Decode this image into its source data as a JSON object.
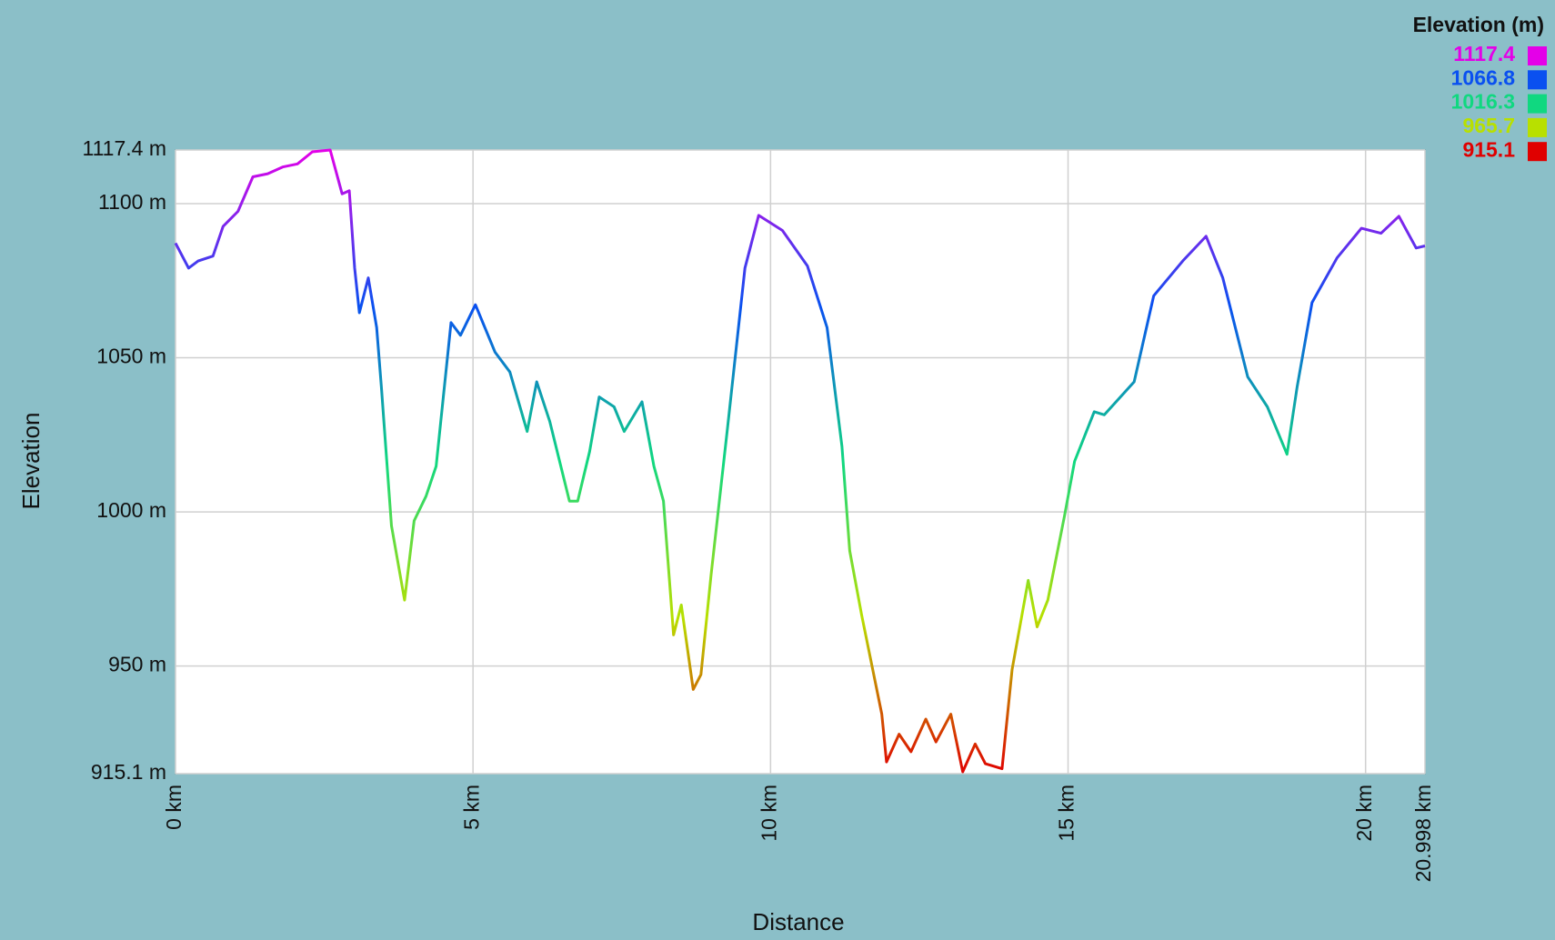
{
  "chart_data": {
    "type": "line",
    "xlabel": "Distance",
    "ylabel": "Elevation",
    "legend_title": "Elevation (m)",
    "colorscale": [
      {
        "value": 1117.4,
        "color": "#e400e8"
      },
      {
        "value": 1066.8,
        "color": "#0a50f0"
      },
      {
        "value": 1016.3,
        "color": "#10d880"
      },
      {
        "value": 965.7,
        "color": "#b8e000"
      },
      {
        "value": 915.1,
        "color": "#e00000"
      }
    ],
    "x": [
      0,
      0.22,
      0.38,
      0.63,
      0.8,
      1.05,
      1.3,
      1.55,
      1.8,
      2.05,
      2.3,
      2.6,
      2.8,
      2.92,
      3.01,
      3.09,
      3.24,
      3.38,
      3.46,
      3.63,
      3.85,
      4.01,
      4.21,
      4.38,
      4.63,
      4.79,
      5.04,
      5.37,
      5.62,
      5.91,
      6.07,
      6.29,
      6.62,
      6.76,
      6.96,
      7.12,
      7.37,
      7.54,
      7.84,
      8.04,
      8.2,
      8.37,
      8.5,
      8.7,
      8.83,
      9.0,
      9.28,
      9.57,
      9.8,
      10.2,
      10.62,
      10.95,
      11.2,
      11.33,
      11.53,
      11.87,
      11.95,
      12.16,
      12.36,
      12.61,
      12.78,
      13.03,
      13.23,
      13.44,
      13.61,
      13.89,
      14.06,
      14.33,
      14.48,
      14.66,
      14.94,
      15.11,
      15.44,
      15.61,
      16.11,
      16.44,
      16.94,
      17.32,
      17.6,
      18.02,
      18.35,
      18.68,
      18.85,
      19.1,
      19.52,
      19.93,
      20.26,
      20.56,
      20.85,
      20.998
    ],
    "values": [
      1087.2,
      1079.1,
      1081.4,
      1083,
      1092.6,
      1097.5,
      1108.7,
      1109.7,
      1111.9,
      1112.9,
      1116.8,
      1117.4,
      1103.2,
      1104.2,
      1079.1,
      1064.6,
      1075.9,
      1059.8,
      1040.5,
      995.5,
      971.4,
      997.1,
      1005.1,
      1014.8,
      1061.4,
      1057.3,
      1067.2,
      1051.8,
      1045.4,
      1026.1,
      1042.2,
      1029.3,
      1003.5,
      1003.5,
      1019.6,
      1037.3,
      1034.1,
      1026.1,
      1035.7,
      1014.8,
      1003.5,
      960.1,
      969.8,
      942.4,
      947.2,
      979.4,
      1027.7,
      1079.1,
      1096.2,
      1091.3,
      1079.8,
      1059.8,
      1021.2,
      987.4,
      966.6,
      934.4,
      918.9,
      927.9,
      922.2,
      932.8,
      925.4,
      934.4,
      915.7,
      924.7,
      918.3,
      916.7,
      948.9,
      977.8,
      962.7,
      971.4,
      998.7,
      1016.4,
      1032.5,
      1031.5,
      1042.2,
      1070.1,
      1081.7,
      1089.4,
      1075.9,
      1043.8,
      1034.1,
      1018.7,
      1040.5,
      1067.9,
      1082.4,
      1092.0,
      1090.4,
      1095.9,
      1085.6,
      1086.3
    ],
    "xlim": [
      0,
      20.998
    ],
    "ylim": [
      915.1,
      1117.4
    ],
    "xticks": [
      {
        "value": 0,
        "label": "0 km"
      },
      {
        "value": 5,
        "label": "5 km"
      },
      {
        "value": 10,
        "label": "10 km"
      },
      {
        "value": 15,
        "label": "15 km"
      },
      {
        "value": 20,
        "label": "20 km"
      },
      {
        "value": 20.998,
        "label": "20.998 km"
      }
    ],
    "yticks": [
      {
        "value": 915.1,
        "label": "915.1 m"
      },
      {
        "value": 950,
        "label": "950 m"
      },
      {
        "value": 1000,
        "label": "1000 m"
      },
      {
        "value": 1050,
        "label": "1050 m"
      },
      {
        "value": 1100,
        "label": "1100 m"
      },
      {
        "value": 1117.4,
        "label": "1117.4 m"
      }
    ],
    "grid": true
  }
}
